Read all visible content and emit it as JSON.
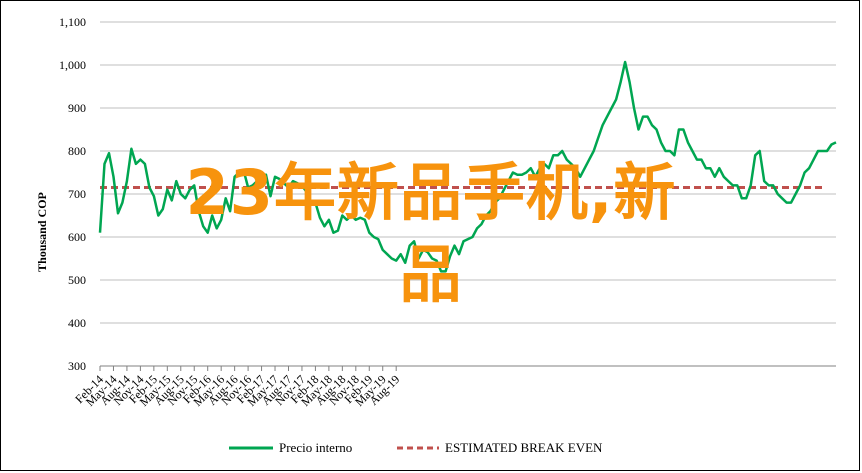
{
  "chart_data": {
    "type": "line",
    "ylabel": "Thousand COP",
    "ylim": [
      300,
      1100
    ],
    "yticks": [
      300,
      400,
      500,
      600,
      700,
      800,
      900,
      1000,
      1100
    ],
    "ytick_labels": [
      "300",
      "400",
      "500",
      "600",
      "700",
      "800",
      "900",
      "1,000",
      "1,100"
    ],
    "grid": true,
    "legend_position": "bottom",
    "x_tick_labels": [
      "Feb-14",
      "May-14",
      "Aug-14",
      "Nov-14",
      "Feb-15",
      "May-15",
      "Aug-15",
      "Nov-15",
      "Feb-16",
      "May-16",
      "Aug-16",
      "Nov-16",
      "Feb-17",
      "May-17",
      "Aug-17",
      "Nov-17",
      "Feb-18",
      "May-18",
      "Aug-18",
      "Nov-18",
      "Feb-19",
      "May-19",
      "Aug-19"
    ],
    "x_months_start": "Feb-14",
    "series": [
      {
        "name": "Precio interno",
        "color": "#00a651",
        "style": "solid",
        "values": [
          610,
          770,
          795,
          740,
          655,
          680,
          730,
          805,
          770,
          780,
          770,
          715,
          695,
          650,
          665,
          710,
          685,
          730,
          700,
          690,
          710,
          720,
          660,
          625,
          610,
          650,
          620,
          640,
          690,
          660,
          740,
          750,
          755,
          715,
          720,
          730,
          720,
          745,
          695,
          740,
          735,
          725,
          715,
          730,
          725,
          720,
          705,
          675,
          680,
          645,
          625,
          640,
          610,
          615,
          650,
          640,
          650,
          640,
          645,
          640,
          610,
          600,
          595,
          570,
          560,
          550,
          545,
          560,
          540,
          580,
          590,
          550,
          570,
          565,
          550,
          545,
          520,
          520,
          555,
          580,
          560,
          590,
          595,
          600,
          620,
          630,
          650,
          660,
          680,
          690,
          710,
          730,
          750,
          745,
          745,
          750,
          760,
          740,
          760,
          770,
          760,
          790,
          790,
          800,
          780,
          770,
          760,
          740,
          760,
          780,
          800,
          830,
          860,
          880,
          900,
          920,
          960,
          1007,
          960,
          900,
          850,
          880,
          880,
          860,
          850,
          820,
          800,
          800,
          790,
          850,
          850,
          820,
          800,
          780,
          780,
          760,
          760,
          740,
          760,
          740,
          730,
          720,
          720,
          690,
          690,
          720,
          790,
          800,
          730,
          720,
          720,
          700,
          690,
          680,
          680,
          700,
          720,
          750,
          760,
          780,
          800,
          800,
          800,
          815,
          820
        ]
      },
      {
        "name": "ESTIMATED BREAK EVEN",
        "color": "#c0504d",
        "style": "dashed",
        "values": [
          715,
          715
        ]
      }
    ]
  },
  "overlay": {
    "line1": "23年新品手机,新",
    "line2": "品"
  }
}
